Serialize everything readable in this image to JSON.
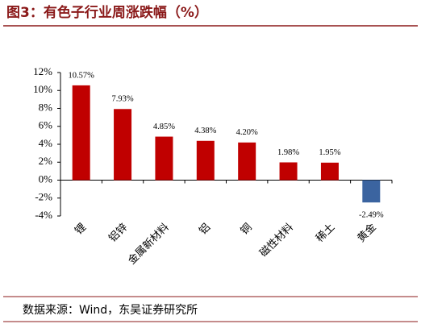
{
  "chart_data": {
    "type": "bar",
    "title": "图3：有色子行业周涨跌幅（%）",
    "source": "数据来源：Wind，东吴证券研究所",
    "categories": [
      "锂",
      "铝锌",
      "金属新材料",
      "铝",
      "铜",
      "磁性材料",
      "稀土",
      "黄金"
    ],
    "values": [
      10.57,
      7.93,
      4.85,
      4.38,
      4.2,
      1.98,
      1.95,
      -2.49
    ],
    "value_labels": [
      "10.57%",
      "7.93%",
      "4.85%",
      "4.38%",
      "4.20%",
      "1.98%",
      "1.95%",
      "-2.49%"
    ],
    "colors": [
      "#c00000",
      "#c00000",
      "#c00000",
      "#c00000",
      "#c00000",
      "#c00000",
      "#c00000",
      "#3b64a0"
    ],
    "ylim": [
      -4,
      12
    ],
    "yticks": [
      {
        "value": -4,
        "label": "-4%"
      },
      {
        "value": -2,
        "label": "-2%"
      },
      {
        "value": 0,
        "label": "0%"
      },
      {
        "value": 2,
        "label": "2%"
      },
      {
        "value": 4,
        "label": "4%"
      },
      {
        "value": 6,
        "label": "6%"
      },
      {
        "value": 8,
        "label": "8%"
      },
      {
        "value": 10,
        "label": "10%"
      },
      {
        "value": 12,
        "label": "12%"
      }
    ],
    "grid": false
  }
}
